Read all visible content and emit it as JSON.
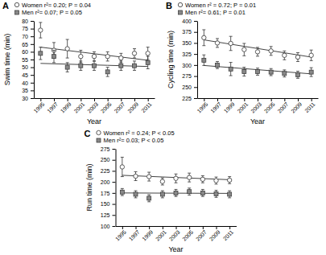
{
  "chart_data": [
    {
      "type": "scatter",
      "title": "A",
      "x_label": "Year",
      "y_label": "Swim time (min)",
      "x": [
        1995,
        1997,
        1999,
        2001,
        2003,
        2005,
        2007,
        2009,
        2011
      ],
      "xlim": [
        1994,
        2012
      ],
      "xticks": [
        1995,
        1997,
        1999,
        2001,
        2003,
        2005,
        2007,
        2009,
        2011
      ],
      "ylim": [
        30,
        80
      ],
      "yticks": [
        30,
        35,
        40,
        45,
        50,
        55,
        60,
        65,
        70,
        75,
        80
      ],
      "grid": false,
      "legend": "top",
      "series": [
        {
          "name": "Women r²= 0.20; P = 0.04",
          "marker": "circle",
          "color": "#ffffff",
          "values": [
            74,
            61,
            62,
            57,
            57,
            57,
            56,
            59,
            59
          ],
          "errors": [
            5,
            5,
            6,
            4,
            3,
            3,
            3,
            3,
            4
          ]
        },
        {
          "name": "Men r²= 0.07; P = 0.05",
          "marker": "square",
          "color": "#888888",
          "values": [
            59,
            57,
            50,
            51,
            51,
            47,
            51,
            51,
            53
          ],
          "errors": [
            4,
            4,
            3,
            3,
            3,
            3,
            3,
            3,
            4
          ]
        },
        {
          "type": "line",
          "line_style": "solid",
          "color": "#444444",
          "values": [
            63,
            61.9375,
            60.875,
            59.8125,
            58.75,
            57.6875,
            56.625,
            55.5625,
            54.5
          ]
        },
        {
          "type": "line",
          "line_style": "solid",
          "color": "#444444",
          "values": [
            52.5,
            52.25,
            52,
            51.75,
            51.5,
            51.25,
            51,
            50.75,
            50.5
          ]
        }
      ]
    },
    {
      "type": "scatter",
      "title": "B",
      "x_label": "Year",
      "y_label": "Cycling time (min)",
      "x": [
        1995,
        1997,
        1999,
        2001,
        2003,
        2005,
        2007,
        2009,
        2011
      ],
      "xlim": [
        1994,
        2012
      ],
      "xticks": [
        1995,
        1997,
        1999,
        2001,
        2003,
        2005,
        2007,
        2009,
        2011
      ],
      "ylim": [
        225,
        400
      ],
      "yticks": [
        225,
        250,
        275,
        300,
        325,
        350,
        375,
        400
      ],
      "grid": false,
      "legend": "top",
      "series": [
        {
          "name": "Women r² = 0.72; P = 0.01",
          "marker": "circle",
          "color": "#ffffff",
          "values": [
            362,
            350,
            349,
            335,
            330,
            332,
            322,
            318,
            322
          ],
          "errors": [
            18,
            10,
            16,
            14,
            10,
            10,
            10,
            10,
            12
          ]
        },
        {
          "name": "Men r²= 0.61; P = 0.01",
          "marker": "square",
          "color": "#888888",
          "values": [
            311,
            300,
            291,
            285,
            285,
            284,
            281,
            278,
            284
          ],
          "errors": [
            12,
            8,
            15,
            10,
            8,
            8,
            8,
            8,
            10
          ]
        },
        {
          "type": "line",
          "line_style": "solid",
          "color": "#444444",
          "values": [
            357,
            352.125,
            347.25,
            342.375,
            337.5,
            332.625,
            327.75,
            322.875,
            318
          ]
        },
        {
          "type": "line",
          "line_style": "solid",
          "color": "#444444",
          "values": [
            299,
            296.625,
            294.25,
            291.875,
            289.5,
            287.125,
            284.75,
            282.375,
            280
          ]
        }
      ]
    },
    {
      "type": "scatter",
      "title": "C",
      "x_label": "Year",
      "y_label": "Run time (min)",
      "x": [
        1995,
        1997,
        1999,
        2001,
        2003,
        2005,
        2007,
        2009,
        2011
      ],
      "xlim": [
        1994,
        2012
      ],
      "xticks": [
        1995,
        1997,
        1999,
        2001,
        2003,
        2005,
        2007,
        2009,
        2011
      ],
      "ylim": [
        100,
        275
      ],
      "yticks": [
        100,
        125,
        150,
        175,
        200,
        225,
        250,
        275
      ],
      "grid": false,
      "legend": "top",
      "series": [
        {
          "name": "Women r² = 0.24; P < 0.05",
          "marker": "circle",
          "color": "#ffffff",
          "values": [
            234,
            213,
            212,
            201,
            208,
            210,
            206,
            203,
            204
          ],
          "errors": [
            22,
            10,
            10,
            8,
            10,
            10,
            8,
            8,
            8
          ]
        },
        {
          "name": "Men r²= 0.03; P < 0.05",
          "marker": "square",
          "color": "#888888",
          "values": [
            177,
            172,
            163,
            172,
            175,
            178,
            175,
            173,
            172
          ],
          "errors": [
            8,
            8,
            8,
            8,
            8,
            8,
            8,
            8,
            8
          ]
        },
        {
          "type": "line",
          "line_style": "solid",
          "color": "#444444",
          "values": [
            215,
            213.75,
            212.5,
            211.25,
            210,
            208.75,
            207.5,
            206.25,
            205
          ]
        },
        {
          "type": "line",
          "line_style": "solid",
          "color": "#444444",
          "values": [
            175,
            174.875,
            174.75,
            174.625,
            174.5,
            174.375,
            174.25,
            174.125,
            174
          ]
        }
      ]
    }
  ]
}
